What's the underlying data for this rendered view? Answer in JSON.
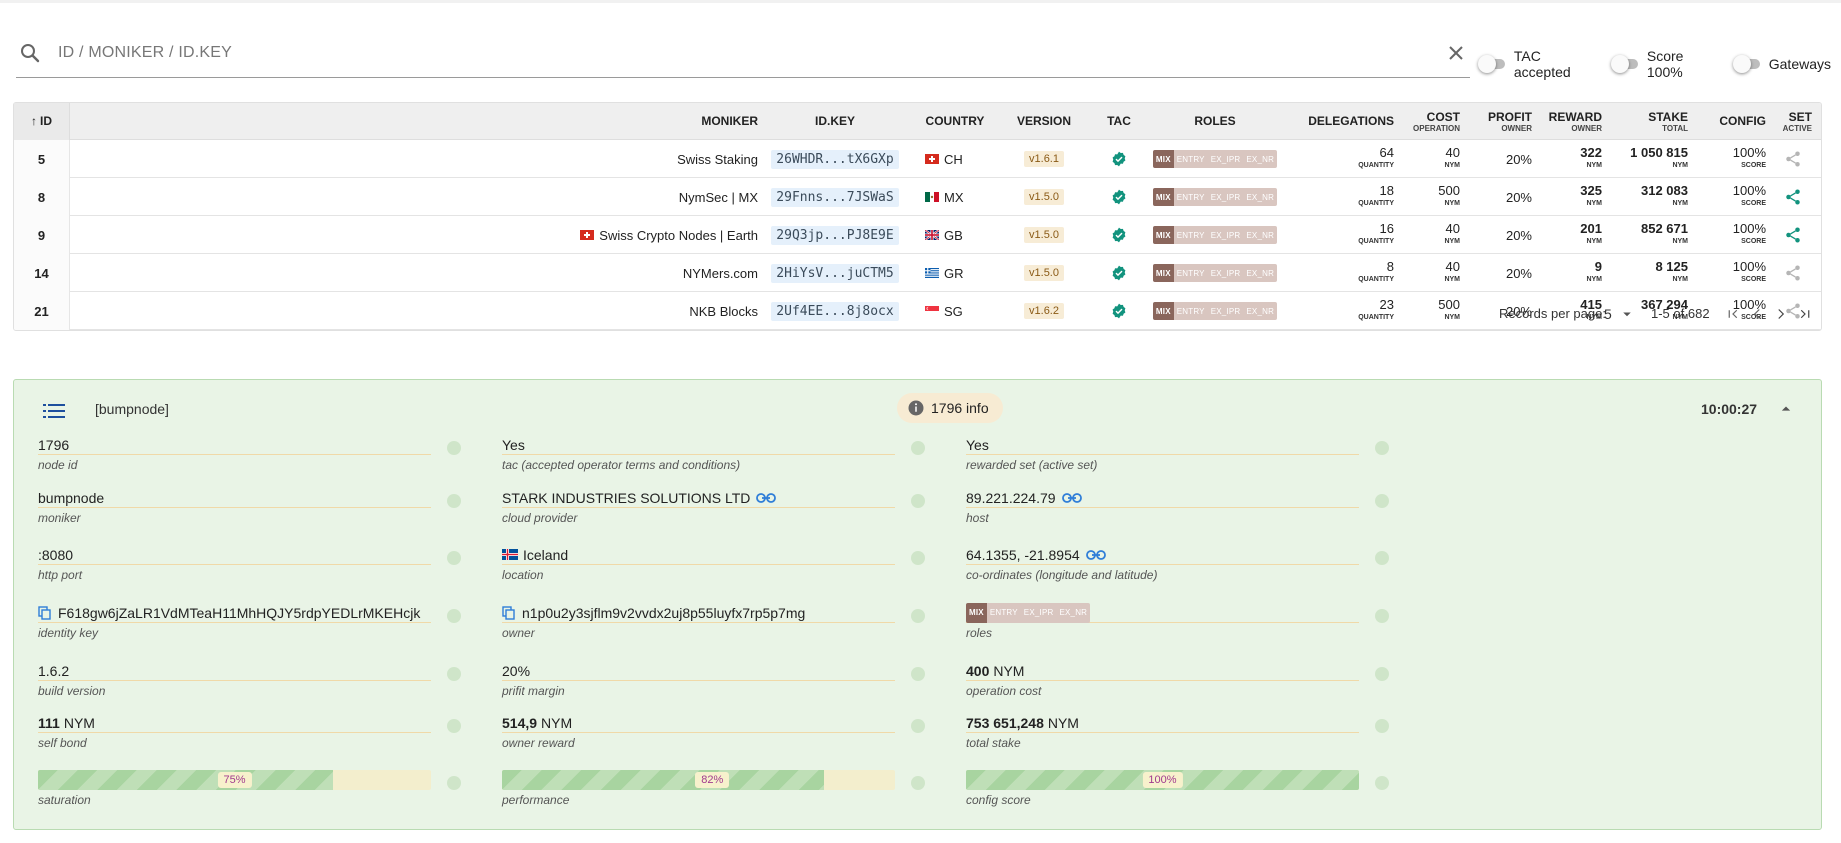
{
  "search": {
    "placeholder": "ID / MONIKER / ID.KEY"
  },
  "filters": [
    {
      "label": "TAC accepted"
    },
    {
      "label": "Score 100%"
    },
    {
      "label": "Gateways"
    }
  ],
  "table": {
    "headers": {
      "id": "ID",
      "moniker": "MONIKER",
      "idkey": "ID.KEY",
      "country": "COUNTRY",
      "version": "VERSION",
      "tac": "TAC",
      "roles": "ROLES",
      "delegations": "DELEGATIONS",
      "cost": "COST",
      "cost_sub": "OPERATION",
      "profit": "PROFIT",
      "profit_sub": "OWNER",
      "reward": "REWARD",
      "reward_sub": "OWNER",
      "stake": "STAKE",
      "stake_sub": "TOTAL",
      "config": "CONFIG",
      "set": "SET",
      "set_sub": "ACTIVE"
    },
    "role_labels": [
      "MIX",
      "ENTRY",
      "EX_IPR",
      "EX_NR"
    ],
    "rows": [
      {
        "id": "5",
        "moniker": "Swiss Staking",
        "idkey": "26WHDR...tX6GXp",
        "country": "CH",
        "version": "v1.6.1",
        "delegations": "64",
        "delegations_unit": "QUANTITY",
        "cost": "40",
        "cost_unit": "NYM",
        "profit": "20%",
        "reward": "322",
        "reward_unit": "NYM",
        "stake": "1 050 815",
        "stake_unit": "NYM",
        "config": "100%",
        "config_unit": "SCORE",
        "active": false
      },
      {
        "id": "8",
        "moniker": "NymSec | MX",
        "idkey": "29Fnns...7JSWaS",
        "country": "MX",
        "version": "v1.5.0",
        "delegations": "18",
        "delegations_unit": "QUANTITY",
        "cost": "500",
        "cost_unit": "NYM",
        "profit": "20%",
        "reward": "325",
        "reward_unit": "NYM",
        "stake": "312 083",
        "stake_unit": "NYM",
        "config": "100%",
        "config_unit": "SCORE",
        "active": true
      },
      {
        "id": "9",
        "moniker": "Swiss Crypto Nodes | Earth",
        "idkey": "29Q3jp...PJ8E9E",
        "country": "GB",
        "version": "v1.5.0",
        "delegations": "16",
        "delegations_unit": "QUANTITY",
        "cost": "40",
        "cost_unit": "NYM",
        "profit": "20%",
        "reward": "201",
        "reward_unit": "NYM",
        "stake": "852 671",
        "stake_unit": "NYM",
        "config": "100%",
        "config_unit": "SCORE",
        "active": true
      },
      {
        "id": "14",
        "moniker": "NYMers.com",
        "idkey": "2HiYsV...juCTM5",
        "country": "GR",
        "version": "v1.5.0",
        "delegations": "8",
        "delegations_unit": "QUANTITY",
        "cost": "40",
        "cost_unit": "NYM",
        "profit": "20%",
        "reward": "9",
        "reward_unit": "NYM",
        "stake": "8 125",
        "stake_unit": "NYM",
        "config": "100%",
        "config_unit": "SCORE",
        "active": false
      },
      {
        "id": "21",
        "moniker": "NKB Blocks",
        "idkey": "2Uf4EE...8j8ocx",
        "country": "SG",
        "version": "v1.6.2",
        "delegations": "23",
        "delegations_unit": "QUANTITY",
        "cost": "500",
        "cost_unit": "NYM",
        "profit": "20%",
        "reward": "415",
        "reward_unit": "NYM",
        "stake": "367 294",
        "stake_unit": "NYM",
        "config": "100%",
        "config_unit": "SCORE",
        "active": false
      }
    ],
    "pagination": {
      "label": "Records per page:",
      "per_page": "5",
      "range": "1-5 of 682"
    }
  },
  "detail": {
    "title": "[bumpnode]",
    "info": "1796 info",
    "time": "10:00:27",
    "node_id": {
      "value": "1796",
      "label": "node id"
    },
    "tac": {
      "value": "Yes",
      "label": "tac (accepted operator terms and conditions)"
    },
    "rewarded": {
      "value": "Yes",
      "label": "rewarded set (active set)"
    },
    "moniker": {
      "value": "bumpnode",
      "label": "moniker"
    },
    "cloud": {
      "value": "STARK INDUSTRIES SOLUTIONS LTD",
      "label": "cloud provider"
    },
    "host": {
      "value": "89.221.224.79",
      "label": "host"
    },
    "http_port": {
      "value": ":8080",
      "label": "http port"
    },
    "location": {
      "value": "Iceland",
      "label": "location"
    },
    "coords": {
      "value": "64.1355, -21.8954",
      "label": "co-ordinates (longitude and latitude)"
    },
    "identity": {
      "value": "F618gw6jZaLR1VdMTeaH11MhHQJY5rdpYEDLrMKEHcjk",
      "label": "identity key"
    },
    "owner": {
      "value": "n1p0u2y3sjflm9v2vvdx2uj8p55luyfx7rp5p7mg",
      "label": "owner"
    },
    "roles": {
      "label": "roles"
    },
    "build": {
      "value": "1.6.2",
      "label": "build version"
    },
    "margin": {
      "value": "20%",
      "label": "prifit margin"
    },
    "op_cost": {
      "value": "400",
      "unit": "NYM",
      "label": "operation cost"
    },
    "self_bond": {
      "value": "111",
      "unit": "NYM",
      "label": "self bond"
    },
    "owner_reward": {
      "value": "514,9",
      "unit": "NYM",
      "label": "owner reward"
    },
    "total_stake": {
      "value": "753 651,248",
      "unit": "NYM",
      "label": "total stake"
    },
    "saturation": {
      "percent": 75,
      "text": "75%",
      "label": "saturation"
    },
    "performance": {
      "percent": 82,
      "text": "82%",
      "label": "performance"
    },
    "config_score": {
      "percent": 100,
      "text": "100%",
      "label": "config score"
    }
  },
  "colors": {
    "accent_teal": "#12937e",
    "panel_bg": "#e9f4e6",
    "role_mix": "#8a665c",
    "role_off": "#d9c6c0"
  }
}
